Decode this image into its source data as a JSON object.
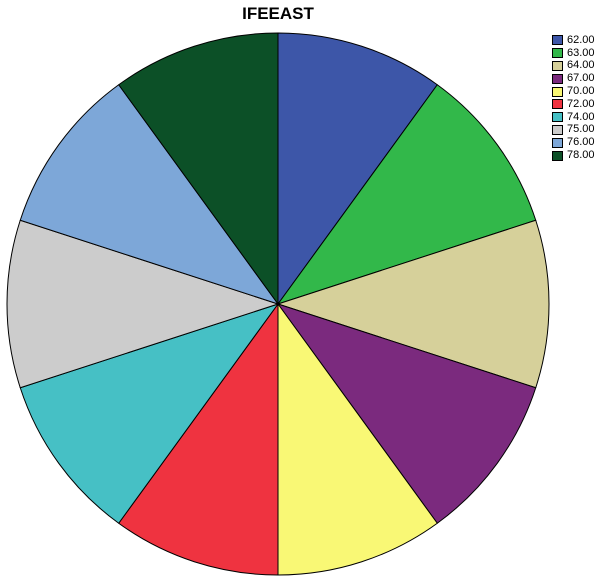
{
  "chart_data": {
    "type": "pie",
    "title": "IFEEAST",
    "categories": [
      "62.00",
      "63.00",
      "64.00",
      "67.00",
      "70.00",
      "72.00",
      "74.00",
      "75.00",
      "76.00",
      "78.00"
    ],
    "values": [
      1,
      1,
      1,
      1,
      1,
      1,
      1,
      1,
      1,
      1
    ],
    "colors": [
      "#3d56a8",
      "#32b84a",
      "#d6d09a",
      "#7b2a7e",
      "#f9f875",
      "#ef3340",
      "#46c0c5",
      "#cccccc",
      "#7da7d8",
      "#0c5027"
    ],
    "start_angle": "12 o'clock",
    "direction": "clockwise",
    "legend_position": "top-right"
  }
}
